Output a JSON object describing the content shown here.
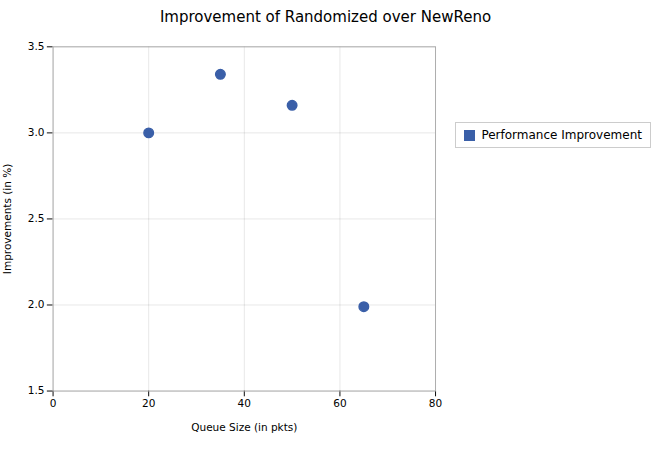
{
  "chart_data": {
    "type": "scatter",
    "title": "Improvement of Randomized over NewReno",
    "xlabel": "Queue Size (in pkts)",
    "ylabel": "Improvements (in %)",
    "x": [
      20,
      35,
      50,
      65
    ],
    "series": [
      {
        "name": "Performance Improvement",
        "color": "#3A5FA8",
        "marker": "circle",
        "values": [
          3.0,
          3.34,
          3.16,
          1.99
        ]
      }
    ],
    "xlim": [
      0,
      80
    ],
    "ylim": [
      1.5,
      3.5
    ],
    "xticks": [
      0,
      20,
      40,
      60,
      80
    ],
    "yticks": [
      1.5,
      {
        "value": 2.0,
        "label": "2.0"
      },
      2.5,
      {
        "value": 3.0,
        "label": "3.0"
      },
      3.5
    ],
    "grid": true,
    "legend": "right"
  }
}
